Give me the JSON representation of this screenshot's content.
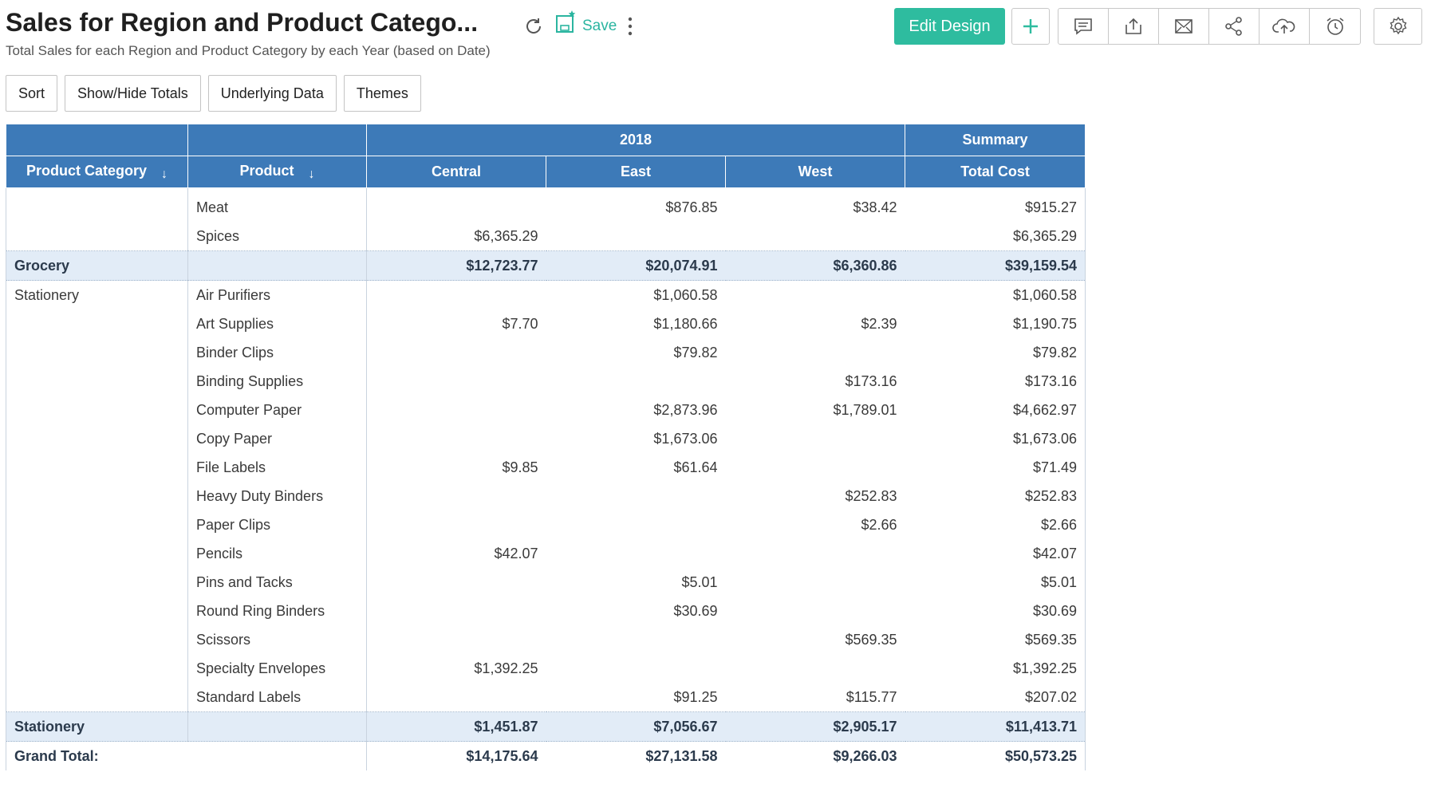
{
  "header": {
    "title": "Sales for Region and Product Catego...",
    "subtitle": "Total Sales for each Region and Product Category by each Year (based on Date)",
    "save_label": "Save",
    "edit_design_label": "Edit Design",
    "icons": [
      "refresh-icon",
      "save-icon",
      "more-vertical-icon",
      "plus-icon",
      "comment-icon",
      "export-icon",
      "email-icon",
      "share-icon",
      "publish-cloud-icon",
      "schedule-alarm-icon",
      "gear-icon"
    ]
  },
  "toolbar": {
    "sort": "Sort",
    "show_hide_totals": "Show/Hide Totals",
    "underlying_data": "Underlying Data",
    "themes": "Themes"
  },
  "table": {
    "year_label": "2018",
    "summary_label": "Summary",
    "col_product_category": "Product Category",
    "col_product": "Product",
    "col_central": "Central",
    "col_east": "East",
    "col_west": "West",
    "col_total": "Total Cost",
    "rows": [
      {
        "category": "",
        "product": "Meat",
        "central": "",
        "east": "$876.85",
        "west": "$38.42",
        "total": "$915.27"
      },
      {
        "category": "",
        "product": "Spices",
        "central": "$6,365.29",
        "east": "",
        "west": "",
        "total": "$6,365.29"
      },
      {
        "subtotal": true,
        "category": "Grocery",
        "product": "",
        "central": "$12,723.77",
        "east": "$20,074.91",
        "west": "$6,360.86",
        "total": "$39,159.54"
      },
      {
        "category": "Stationery",
        "product": "Air Purifiers",
        "central": "",
        "east": "$1,060.58",
        "west": "",
        "total": "$1,060.58"
      },
      {
        "category": "",
        "product": "Art Supplies",
        "central": "$7.70",
        "east": "$1,180.66",
        "west": "$2.39",
        "total": "$1,190.75"
      },
      {
        "category": "",
        "product": "Binder Clips",
        "central": "",
        "east": "$79.82",
        "west": "",
        "total": "$79.82"
      },
      {
        "category": "",
        "product": "Binding Supplies",
        "central": "",
        "east": "",
        "west": "$173.16",
        "total": "$173.16"
      },
      {
        "category": "",
        "product": "Computer Paper",
        "central": "",
        "east": "$2,873.96",
        "west": "$1,789.01",
        "total": "$4,662.97"
      },
      {
        "category": "",
        "product": "Copy Paper",
        "central": "",
        "east": "$1,673.06",
        "west": "",
        "total": "$1,673.06"
      },
      {
        "category": "",
        "product": "File Labels",
        "central": "$9.85",
        "east": "$61.64",
        "west": "",
        "total": "$71.49"
      },
      {
        "category": "",
        "product": "Heavy Duty Binders",
        "central": "",
        "east": "",
        "west": "$252.83",
        "total": "$252.83"
      },
      {
        "category": "",
        "product": "Paper Clips",
        "central": "",
        "east": "",
        "west": "$2.66",
        "total": "$2.66"
      },
      {
        "category": "",
        "product": "Pencils",
        "central": "$42.07",
        "east": "",
        "west": "",
        "total": "$42.07"
      },
      {
        "category": "",
        "product": "Pins and Tacks",
        "central": "",
        "east": "$5.01",
        "west": "",
        "total": "$5.01"
      },
      {
        "category": "",
        "product": "Round Ring Binders",
        "central": "",
        "east": "$30.69",
        "west": "",
        "total": "$30.69"
      },
      {
        "category": "",
        "product": "Scissors",
        "central": "",
        "east": "",
        "west": "$569.35",
        "total": "$569.35"
      },
      {
        "category": "",
        "product": "Specialty Envelopes",
        "central": "$1,392.25",
        "east": "",
        "west": "",
        "total": "$1,392.25"
      },
      {
        "category": "",
        "product": "Standard Labels",
        "central": "",
        "east": "$91.25",
        "west": "$115.77",
        "total": "$207.02"
      },
      {
        "subtotal": true,
        "category": "Stationery",
        "product": "",
        "central": "$1,451.87",
        "east": "$7,056.67",
        "west": "$2,905.17",
        "total": "$11,413.71"
      }
    ],
    "grand_total": {
      "label": "Grand Total:",
      "central": "$14,175.64",
      "east": "$27,131.58",
      "west": "$9,266.03",
      "total": "$50,573.25"
    }
  }
}
